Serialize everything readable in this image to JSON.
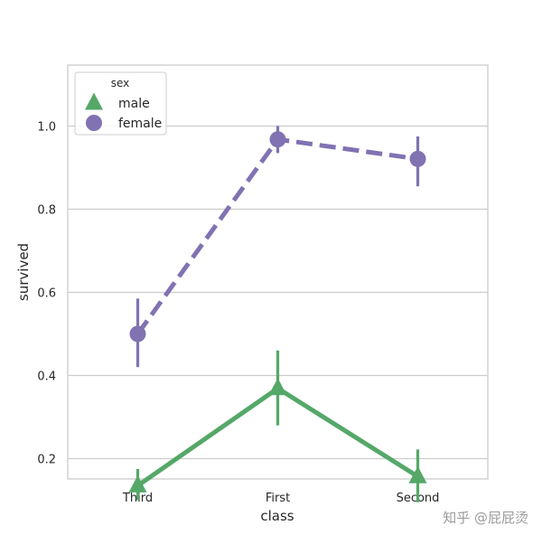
{
  "chart_data": {
    "type": "line",
    "xlabel": "class",
    "ylabel": "survived",
    "categories": [
      "Third",
      "First",
      "Second"
    ],
    "ylim": [
      0.05,
      1.05
    ],
    "yticks": [
      0.2,
      0.4,
      0.6,
      0.8,
      1.0
    ],
    "ytick_labels": [
      "0.2",
      "0.4",
      "0.6",
      "0.8",
      "1.0"
    ],
    "grid": "horizontal",
    "legend": {
      "title": "sex",
      "placement": "top-left"
    },
    "series": [
      {
        "name": "male",
        "values": [
          0.135,
          0.369,
          0.157
        ],
        "ci": [
          [
            0.1,
            0.175
          ],
          [
            0.28,
            0.46
          ],
          [
            0.095,
            0.222
          ]
        ],
        "color": "#55a868",
        "marker": "triangle",
        "linestyle": "solid"
      },
      {
        "name": "female",
        "values": [
          0.5,
          0.968,
          0.921
        ],
        "ci": [
          [
            0.42,
            0.585
          ],
          [
            0.935,
            1.0
          ],
          [
            0.855,
            0.975
          ]
        ],
        "color": "#8172b2",
        "marker": "circle",
        "linestyle": "dashed"
      }
    ]
  },
  "watermark": "知乎 @屁屁烫"
}
